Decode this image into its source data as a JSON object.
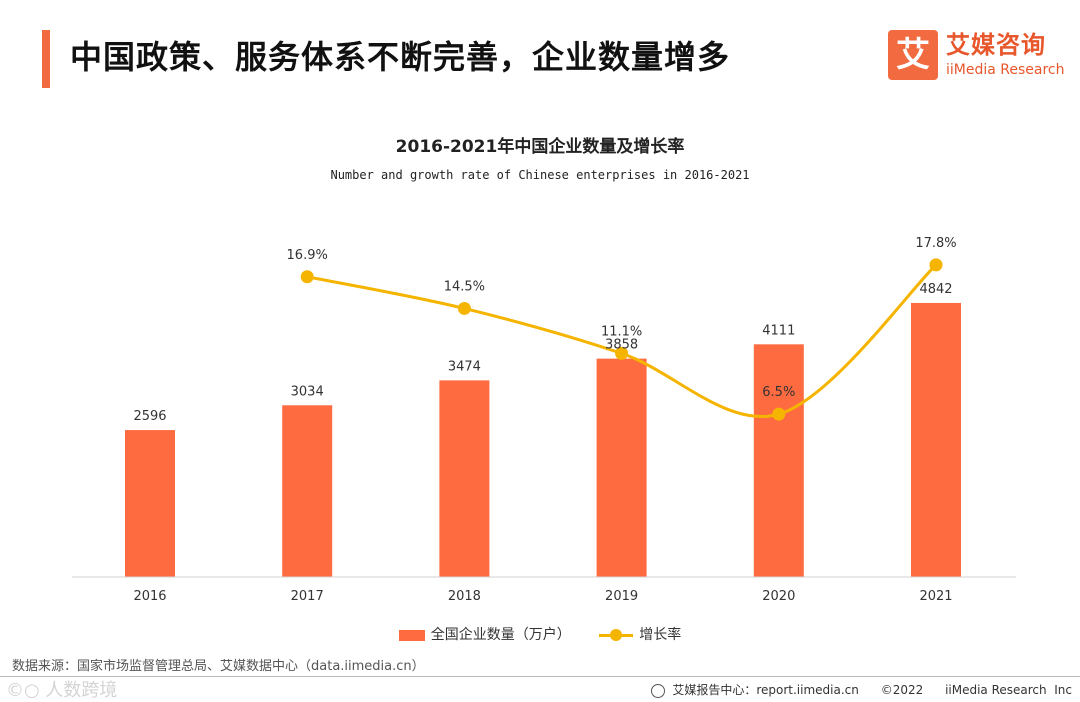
{
  "header": {
    "title": "中国政策、服务体系不断完善，企业数量增多"
  },
  "logo": {
    "mark": "艾",
    "cn": "艾媒咨询",
    "en": "iiMedia Research"
  },
  "chart_data": {
    "type": "bar",
    "title": "2016-2021年中国企业数量及增长率",
    "subtitle": "Number and growth rate of Chinese enterprises in 2016-2021",
    "categories": [
      "2016",
      "2017",
      "2018",
      "2019",
      "2020",
      "2021"
    ],
    "series": [
      {
        "name": "全国企业数量（万户）",
        "type": "bar",
        "values": [
          2596,
          3034,
          3474,
          3858,
          4111,
          4842
        ],
        "labels": [
          "2596",
          "3034",
          "3474",
          "3858",
          "4111",
          "4842"
        ],
        "color": "#ff6b40"
      },
      {
        "name": "增长率",
        "type": "line",
        "values": [
          null,
          16.9,
          14.5,
          11.1,
          6.5,
          17.8
        ],
        "labels": [
          "",
          "16.9%",
          "14.5%",
          "11.1%",
          "6.5%",
          "17.8%"
        ],
        "color": "#f5b400"
      }
    ],
    "xlabel": "",
    "ylabel": "",
    "legend": "bottom",
    "grid": false
  },
  "legend": {
    "bar_label": "全国企业数量（万户）",
    "line_label": "增长率"
  },
  "source": "数据来源：国家市场监督管理总局、艾媒数据中心（data.iimedia.cn）",
  "watermark": "©○ 人数跨境",
  "footer": {
    "report": "艾媒报告中心：report.iimedia.cn",
    "copyright": "©2022",
    "company": "iiMedia Research  Inc"
  }
}
